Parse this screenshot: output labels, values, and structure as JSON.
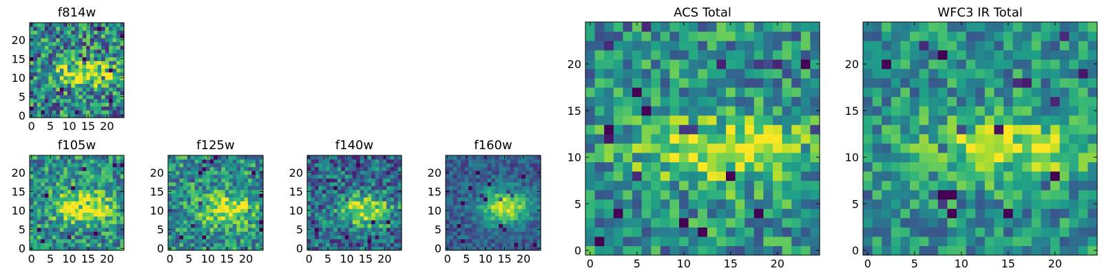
{
  "chart_data": [
    {
      "type": "heatmap",
      "title": "f814w",
      "colormap": "viridis",
      "grid_size": 25,
      "xlim": [
        0,
        24
      ],
      "ylim": [
        0,
        24
      ],
      "xticks": [
        0,
        5,
        10,
        15,
        20
      ],
      "yticks": [
        0,
        5,
        10,
        15,
        20
      ],
      "blob": {
        "cx": 14,
        "cy": 11,
        "sx": 6.0,
        "sy": 2.2,
        "amp": 0.55,
        "noise": 0.45,
        "base": 0.45
      }
    },
    {
      "type": "heatmap",
      "title": "f105w",
      "colormap": "viridis",
      "grid_size": 25,
      "xlim": [
        0,
        24
      ],
      "ylim": [
        0,
        24
      ],
      "xticks": [
        0,
        5,
        10,
        15,
        20
      ],
      "yticks": [
        0,
        5,
        10,
        15,
        20
      ],
      "blob": {
        "cx": 14,
        "cy": 11,
        "sx": 5.5,
        "sy": 3.0,
        "amp": 0.5,
        "noise": 0.35,
        "base": 0.5
      }
    },
    {
      "type": "heatmap",
      "title": "f125w",
      "colormap": "viridis",
      "grid_size": 25,
      "xlim": [
        0,
        24
      ],
      "ylim": [
        0,
        24
      ],
      "xticks": [
        0,
        5,
        10,
        15,
        20
      ],
      "yticks": [
        0,
        5,
        10,
        15,
        20
      ],
      "blob": {
        "cx": 15,
        "cy": 10,
        "sx": 5.0,
        "sy": 2.8,
        "amp": 0.45,
        "noise": 0.35,
        "base": 0.5
      }
    },
    {
      "type": "heatmap",
      "title": "f140w",
      "colormap": "viridis",
      "grid_size": 25,
      "xlim": [
        0,
        24
      ],
      "ylim": [
        0,
        24
      ],
      "xticks": [
        0,
        5,
        10,
        15,
        20
      ],
      "yticks": [
        0,
        5,
        10,
        15,
        20
      ],
      "blob": {
        "cx": 15,
        "cy": 10,
        "sx": 5.0,
        "sy": 2.8,
        "amp": 0.6,
        "noise": 0.35,
        "base": 0.35
      }
    },
    {
      "type": "heatmap",
      "title": "f160w",
      "colormap": "viridis",
      "grid_size": 25,
      "xlim": [
        0,
        24
      ],
      "ylim": [
        0,
        24
      ],
      "xticks": [
        0,
        5,
        10,
        15,
        20
      ],
      "yticks": [
        0,
        5,
        10,
        15,
        20
      ],
      "blob": {
        "cx": 15,
        "cy": 11,
        "sx": 4.5,
        "sy": 3.2,
        "amp": 0.65,
        "noise": 0.2,
        "base": 0.3
      }
    },
    {
      "type": "heatmap",
      "title": "ACS Total",
      "colormap": "viridis",
      "grid_size": 25,
      "xlim": [
        0,
        24
      ],
      "ylim": [
        0,
        24
      ],
      "xticks": [
        0,
        5,
        10,
        15,
        20
      ],
      "yticks": [
        0,
        5,
        10,
        15,
        20
      ],
      "blob": {
        "cx": 14,
        "cy": 11,
        "sx": 6.5,
        "sy": 2.6,
        "amp": 0.45,
        "noise": 0.35,
        "base": 0.5
      }
    },
    {
      "type": "heatmap",
      "title": "WFC3 IR Total",
      "colormap": "viridis",
      "grid_size": 25,
      "xlim": [
        0,
        24
      ],
      "ylim": [
        0,
        24
      ],
      "xticks": [
        0,
        5,
        10,
        15,
        20
      ],
      "yticks": [
        0,
        5,
        10,
        15,
        20
      ],
      "blob": {
        "cx": 15,
        "cy": 11,
        "sx": 6.0,
        "sy": 2.4,
        "amp": 0.4,
        "noise": 0.3,
        "base": 0.5
      }
    }
  ]
}
